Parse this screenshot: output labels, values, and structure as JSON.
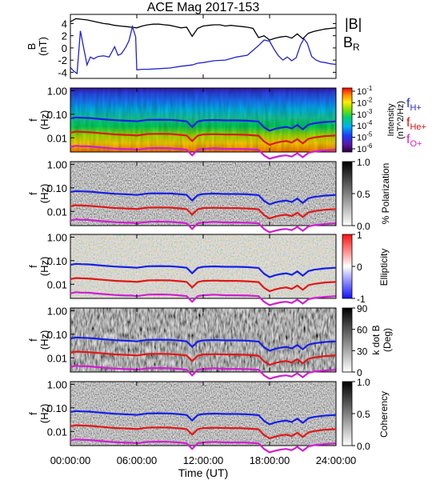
{
  "title": "ACE Mag 2017-153",
  "xlabel": "Time (UT)",
  "x_ticks": [
    "00:00:00",
    "06:00:00",
    "12:00:00",
    "18:00:00",
    "24:00:00"
  ],
  "colors": {
    "B_total": "#000000",
    "B_R": "#1f22cc",
    "f_H": "#1620e6",
    "f_He": "#e01818",
    "f_O": "#d21dd2",
    "label_H": "#2a2ac8",
    "label_He": "#cc1414",
    "label_O": "#cc22cc"
  },
  "chart_data": [
    {
      "type": "line",
      "panel": "magnetic field",
      "ylabel": "B (nT)",
      "ylabel_lines": [
        "B",
        "(nT)"
      ],
      "y_ticks": [
        "4",
        "2",
        "0",
        "-2",
        "-4"
      ],
      "ylim": [
        -5,
        5.5
      ],
      "xlim_hours": [
        0,
        24
      ],
      "legend": [
        "|B|",
        "B_R"
      ],
      "legend_B": "|B|",
      "legend_BR_main": "B",
      "legend_BR_sub": "R",
      "series": [
        {
          "name": "|B|",
          "x": [
            0.0,
            0.5,
            1.0,
            1.5,
            2.0,
            2.5,
            3.0,
            3.5,
            4.0,
            4.5,
            5.0,
            5.5,
            6.0,
            6.5,
            7.0,
            7.5,
            8.0,
            8.5,
            9.0,
            9.5,
            10.0,
            10.5,
            11.0,
            11.5,
            12.0,
            12.5,
            13.0,
            13.5,
            14.0,
            14.5,
            15.0,
            15.5,
            16.0,
            16.5,
            17.0,
            17.5,
            18.0,
            18.5,
            19.0,
            19.5,
            20.0,
            20.5,
            21.0,
            21.5,
            22.0,
            22.5,
            23.0,
            23.5,
            24.0
          ],
          "values": [
            4.3,
            4.8,
            4.7,
            4.6,
            4.4,
            4.2,
            4.0,
            3.9,
            3.7,
            3.6,
            3.5,
            3.4,
            3.3,
            3.6,
            3.8,
            3.9,
            3.9,
            3.8,
            3.7,
            3.5,
            3.3,
            3.4,
            1.9,
            3.2,
            3.6,
            3.7,
            3.8,
            3.8,
            3.6,
            3.7,
            3.6,
            3.5,
            3.4,
            3.2,
            1.7,
            2.0,
            1.3,
            1.6,
            1.8,
            1.9,
            1.6,
            2.3,
            1.5,
            2.4,
            2.7,
            2.9,
            3.1,
            3.2,
            3.3
          ]
        },
        {
          "name": "B_R",
          "x": [
            0.0,
            0.3,
            0.6,
            0.9,
            1.2,
            1.5,
            1.8,
            2.1,
            2.5,
            3.0,
            3.5,
            4.0,
            4.3,
            4.6,
            5.0,
            5.3,
            5.6,
            5.9,
            6.0,
            6.5,
            7.0,
            8.0,
            9.0,
            10.0,
            11.0,
            11.5,
            12.0,
            13.0,
            14.0,
            15.0,
            16.0,
            17.0,
            17.5,
            18.0,
            18.4,
            18.8,
            19.2,
            19.6,
            20.0,
            20.4,
            20.8,
            21.1,
            21.4,
            21.8,
            22.2,
            22.6,
            23.0,
            23.5,
            24.0
          ],
          "values": [
            -3.2,
            -3.8,
            -4.2,
            2.8,
            0.0,
            -2.8,
            -1.5,
            -1.8,
            -1.4,
            -1.3,
            -1.5,
            0.2,
            -1.2,
            -1.0,
            0.1,
            1.2,
            3.5,
            1.8,
            -3.6,
            -3.5,
            -3.5,
            -3.4,
            -3.3,
            -3.0,
            -2.8,
            -2.5,
            -2.4,
            -2.1,
            -2.0,
            -1.5,
            -1.2,
            0.4,
            1.3,
            1.1,
            -0.2,
            -1.3,
            -2.0,
            -1.5,
            -2.1,
            -1.6,
            0.5,
            1.5,
            0.8,
            -1.4,
            -2.0,
            -2.3,
            -2.4,
            -2.6,
            -2.7
          ]
        }
      ]
    },
    {
      "type": "heatmap",
      "panel": "power spectral density",
      "ylabel": "f (Hz)",
      "ylabel_lines": [
        "f",
        "(Hz)"
      ],
      "y_scale": "log",
      "y_ticks": [
        "1.00",
        "0.10",
        "0.01"
      ],
      "colorbar_label": "Intensity (nT²/Hz)",
      "colorbar_label_lines": [
        "Intensity",
        "(nT^2/Hz)"
      ],
      "colorbar_ticks": [
        "10^-1",
        "10^-2",
        "10^-3",
        "10^-4",
        "10^-5",
        "10^-6"
      ],
      "colorbar_colormap": "rainbow",
      "legend_lines": [
        {
          "main": "f",
          "sub": "H+"
        },
        {
          "main": "f",
          "sub": "He+"
        },
        {
          "main": "f",
          "sub": "O+"
        }
      ]
    },
    {
      "type": "heatmap",
      "panel": "polarization",
      "ylabel": "f (Hz)",
      "y_scale": "log",
      "y_ticks": [
        "1.00",
        "0.10",
        "0.01"
      ],
      "colorbar_label": "% Polarization",
      "colorbar_ticks": [
        "1.0",
        "0.5",
        "0.0"
      ],
      "colorbar_colormap": "grayscale"
    },
    {
      "type": "heatmap",
      "panel": "ellipticity",
      "ylabel": "f (Hz)",
      "y_scale": "log",
      "y_ticks": [
        "1.00",
        "0.10",
        "0.01"
      ],
      "colorbar_label": "Ellipticity",
      "colorbar_ticks": [
        "1",
        "0",
        "-1"
      ],
      "colorbar_colormap": "blue-white-red"
    },
    {
      "type": "heatmap",
      "panel": "wave normal angle",
      "ylabel": "f (Hz)",
      "y_scale": "log",
      "y_ticks": [
        "1.00",
        "0.10",
        "0.01"
      ],
      "colorbar_label": "k dot B (Deg)",
      "colorbar_label_lines": [
        "k dot B",
        "(Deg)"
      ],
      "colorbar_ticks": [
        "90",
        "60",
        "30",
        "0"
      ],
      "colorbar_colormap": "grayscale"
    },
    {
      "type": "heatmap",
      "panel": "coherency",
      "ylabel": "f (Hz)",
      "y_scale": "log",
      "y_ticks": [
        "1.00",
        "0.10",
        "0.01"
      ],
      "colorbar_label": "Coherency",
      "colorbar_ticks": [
        "1.0",
        "0.5",
        "0.0"
      ],
      "colorbar_colormap": "grayscale"
    }
  ],
  "gyro_lines": {
    "x_hours": [
      0.0,
      0.5,
      1.0,
      1.5,
      2.0,
      3.0,
      4.0,
      5.0,
      5.5,
      6.0,
      7.0,
      8.0,
      9.0,
      10.0,
      10.5,
      11.0,
      11.5,
      12.0,
      13.0,
      14.0,
      15.0,
      16.0,
      17.0,
      17.5,
      18.0,
      18.5,
      19.0,
      19.5,
      20.0,
      20.5,
      21.0,
      21.5,
      22.0,
      23.0,
      24.0
    ],
    "f_H_hz": [
      0.066,
      0.073,
      0.071,
      0.07,
      0.067,
      0.061,
      0.056,
      0.053,
      0.052,
      0.05,
      0.058,
      0.059,
      0.058,
      0.053,
      0.05,
      0.029,
      0.049,
      0.055,
      0.057,
      0.055,
      0.055,
      0.053,
      0.049,
      0.028,
      0.02,
      0.024,
      0.027,
      0.029,
      0.025,
      0.035,
      0.023,
      0.036,
      0.041,
      0.047,
      0.05
    ],
    "f_He_hz": [
      0.0165,
      0.0183,
      0.0178,
      0.0175,
      0.0168,
      0.0153,
      0.014,
      0.0133,
      0.013,
      0.0125,
      0.0145,
      0.0148,
      0.0145,
      0.0133,
      0.0125,
      0.0073,
      0.0123,
      0.0138,
      0.0143,
      0.0138,
      0.0138,
      0.0133,
      0.0123,
      0.007,
      0.005,
      0.006,
      0.0068,
      0.0073,
      0.0063,
      0.0088,
      0.0058,
      0.009,
      0.0103,
      0.0118,
      0.0125
    ],
    "f_O_hz": [
      0.0041,
      0.0046,
      0.0044,
      0.0044,
      0.0042,
      0.0038,
      0.0035,
      0.0033,
      0.0033,
      0.0031,
      0.0036,
      0.0037,
      0.0036,
      0.0033,
      0.0031,
      0.0018,
      0.0031,
      0.0034,
      0.0036,
      0.0034,
      0.0034,
      0.0033,
      0.0031,
      0.0018,
      0.0013,
      0.0015,
      0.0017,
      0.0018,
      0.0016,
      0.0022,
      0.0015,
      0.0023,
      0.0026,
      0.0029,
      0.0031
    ]
  }
}
